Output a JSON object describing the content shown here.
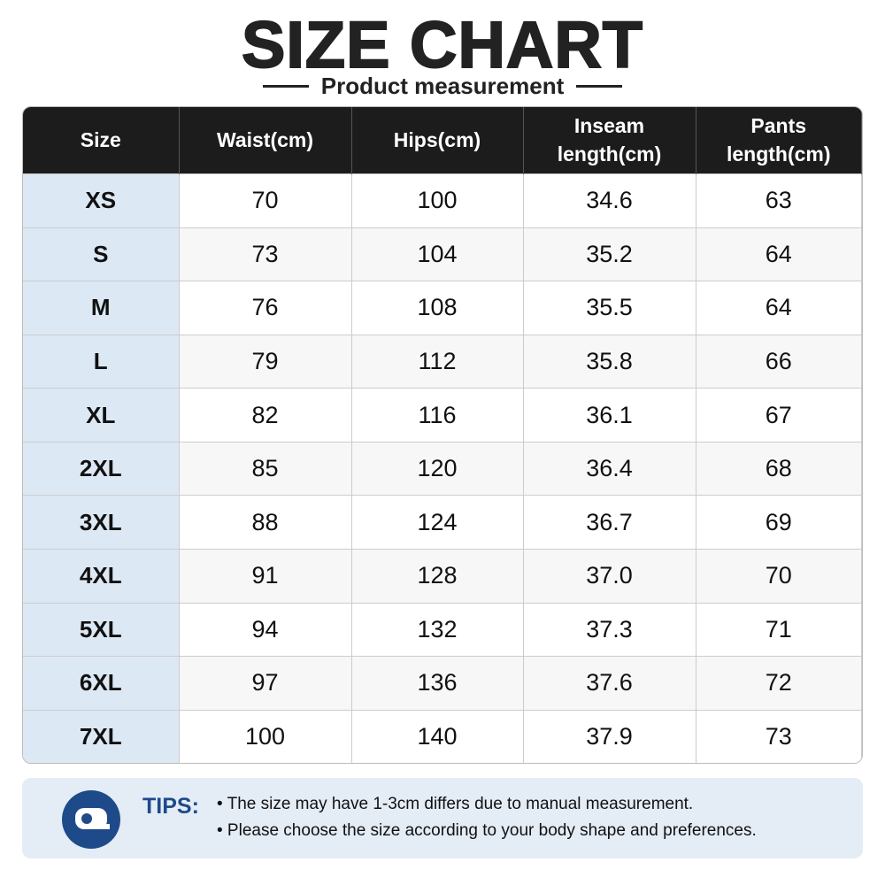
{
  "header": {
    "title": "SIZE CHART",
    "subtitle": "Product measurement"
  },
  "table": {
    "columns": [
      "Size",
      "Waist(cm)",
      "Hips(cm)",
      "Inseam length(cm)",
      "Pants length(cm)"
    ],
    "rows": [
      [
        "XS",
        "70",
        "100",
        "34.6",
        "63"
      ],
      [
        "S",
        "73",
        "104",
        "35.2",
        "64"
      ],
      [
        "M",
        "76",
        "108",
        "35.5",
        "64"
      ],
      [
        "L",
        "79",
        "112",
        "35.8",
        "66"
      ],
      [
        "XL",
        "82",
        "116",
        "36.1",
        "67"
      ],
      [
        "2XL",
        "85",
        "120",
        "36.4",
        "68"
      ],
      [
        "3XL",
        "88",
        "124",
        "36.7",
        "69"
      ],
      [
        "4XL",
        "91",
        "128",
        "37.0",
        "70"
      ],
      [
        "5XL",
        "94",
        "132",
        "37.3",
        "71"
      ],
      [
        "6XL",
        "97",
        "136",
        "37.6",
        "72"
      ],
      [
        "7XL",
        "100",
        "140",
        "37.9",
        "73"
      ]
    ]
  },
  "tips": {
    "label": "TIPS:",
    "lines": [
      "• The size may have 1-3cm differs due to manual measurement.",
      "• Please choose the size according to your body shape and preferences."
    ]
  }
}
